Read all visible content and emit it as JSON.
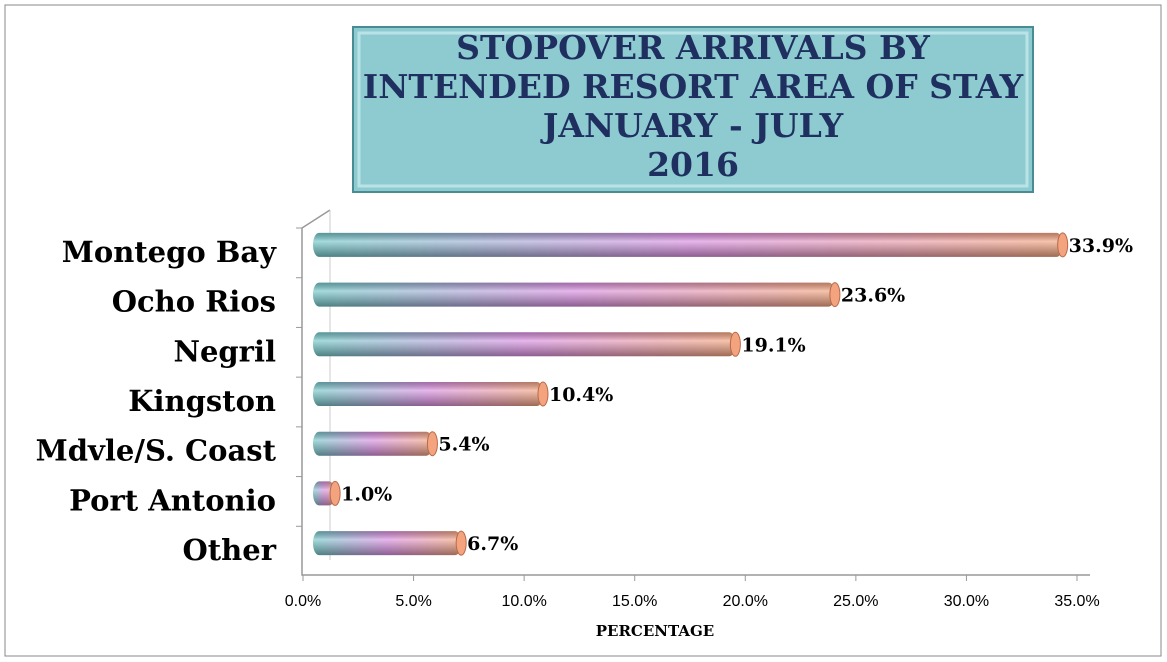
{
  "chart_data": {
    "type": "barh",
    "title": [
      "STOPOVER ARRIVALS BY",
      "INTENDED RESORT AREA OF STAY",
      "JANUARY - JULY",
      "2016"
    ],
    "categories": [
      "Montego Bay",
      "Ocho Rios",
      "Negril",
      "Kingston",
      "Mdvle/S. Coast",
      "Port Antonio",
      "Other"
    ],
    "values": [
      33.9,
      23.6,
      19.1,
      10.4,
      5.4,
      1.0,
      6.7
    ],
    "value_labels": [
      "33.9%",
      "23.6%",
      "19.1%",
      "10.4%",
      "5.4%",
      "1.0%",
      "6.7%"
    ],
    "xlim": [
      0,
      35
    ],
    "xticks": [
      {
        "value": 0,
        "label": "0.0%"
      },
      {
        "value": 5,
        "label": "5.0%"
      },
      {
        "value": 10,
        "label": "10.0%"
      },
      {
        "value": 15,
        "label": "15.0%"
      },
      {
        "value": 20,
        "label": "20.0%"
      },
      {
        "value": 25,
        "label": "25.0%"
      },
      {
        "value": 30,
        "label": "30.0%"
      },
      {
        "value": 35,
        "label": "35.0%"
      }
    ],
    "xlabel": "PERCENTAGE",
    "colors": [
      "#72c9c9",
      "#d98fe2",
      "#f3a47e"
    ]
  }
}
